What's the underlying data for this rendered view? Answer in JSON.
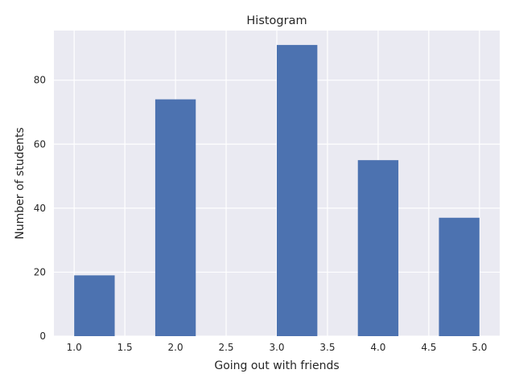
{
  "chart_data": {
    "type": "bar",
    "title": "Histogram",
    "xlabel": "Going out with friends",
    "ylabel": "Number of students",
    "xlim": [
      0.8,
      5.2
    ],
    "ylim": [
      0,
      95.5
    ],
    "xticks": [
      1.0,
      1.5,
      2.0,
      2.5,
      3.0,
      3.5,
      4.0,
      4.5,
      5.0
    ],
    "xtick_labels": [
      "1.0",
      "1.5",
      "2.0",
      "2.5",
      "3.0",
      "3.5",
      "4.0",
      "4.5",
      "5.0"
    ],
    "yticks": [
      0,
      20,
      40,
      60,
      80
    ],
    "ytick_labels": [
      "0",
      "20",
      "40",
      "60",
      "80"
    ],
    "bins": [
      {
        "start": 1.0,
        "end": 1.4,
        "value": 19
      },
      {
        "start": 1.4,
        "end": 1.8,
        "value": 0
      },
      {
        "start": 1.8,
        "end": 2.2,
        "value": 74
      },
      {
        "start": 2.2,
        "end": 2.6,
        "value": 0
      },
      {
        "start": 2.6,
        "end": 3.0,
        "value": 0
      },
      {
        "start": 3.0,
        "end": 3.4,
        "value": 91
      },
      {
        "start": 3.4,
        "end": 3.8,
        "value": 0
      },
      {
        "start": 3.8,
        "end": 4.2,
        "value": 55
      },
      {
        "start": 4.2,
        "end": 4.6,
        "value": 0
      },
      {
        "start": 4.6,
        "end": 5.0,
        "value": 37
      }
    ],
    "bar_color": "#4c72b0",
    "background_color": "#eaeaf2",
    "grid": true,
    "legend": false
  }
}
